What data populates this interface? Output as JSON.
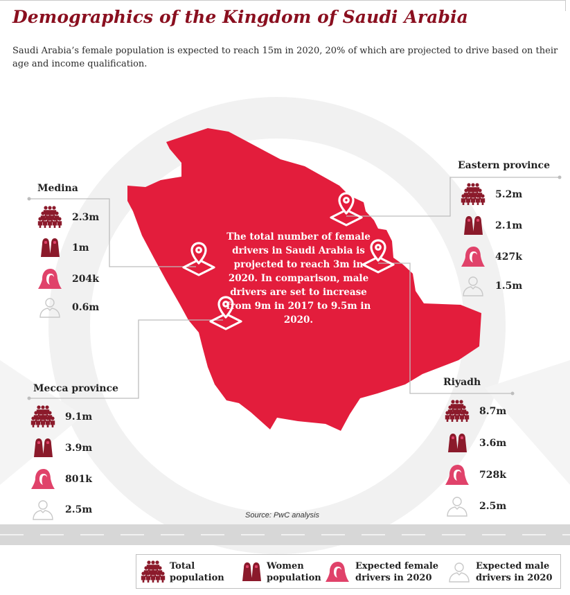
{
  "header": {
    "title": "Demographics of the Kingdom of Saudi Arabia",
    "subtitle": "Saudi Arabia’s female population is expected to reach 15m in 2020, 20% of which are projected to drive based on their age and income qualification."
  },
  "map": {
    "central_text": "The total number of female drivers in Saudi Arabia is projected to reach 3m in 2020. In comparison, male drivers are set to increase from 9m in 2017 to 9.5m in 2020."
  },
  "regions": {
    "medina": {
      "name": "Medina",
      "total": "2.3m",
      "women": "1m",
      "female_drivers": "204k",
      "male_drivers": "0.6m"
    },
    "mecca": {
      "name": "Mecca province",
      "total": "9.1m",
      "women": "3.9m",
      "female_drivers": "801k",
      "male_drivers": "2.5m"
    },
    "eastern": {
      "name": "Eastern province",
      "total": "5.2m",
      "women": "2.1m",
      "female_drivers": "427k",
      "male_drivers": "1.5m"
    },
    "riyadh": {
      "name": "Riyadh",
      "total": "8.7m",
      "women": "3.6m",
      "female_drivers": "728k",
      "male_drivers": "2.5m"
    }
  },
  "source": "Source: PwC analysis",
  "legend": {
    "total": "Total population",
    "women": "Women population",
    "female_drivers": "Expected female drivers in 2020",
    "male_drivers": "Expected male drivers in 2020"
  },
  "icons": {
    "total": "crowd-icon",
    "women": "two-women-icon",
    "female_driver": "hijab-woman-icon",
    "male_driver": "man-outline-icon"
  },
  "colors": {
    "title": "#8a0f1f",
    "map_fill": "#e31d3c",
    "icon_dark": "#8b1a2b",
    "icon_pink": "#e0426a",
    "icon_outline": "#c8c8c8",
    "connector": "#bdbdbd"
  }
}
